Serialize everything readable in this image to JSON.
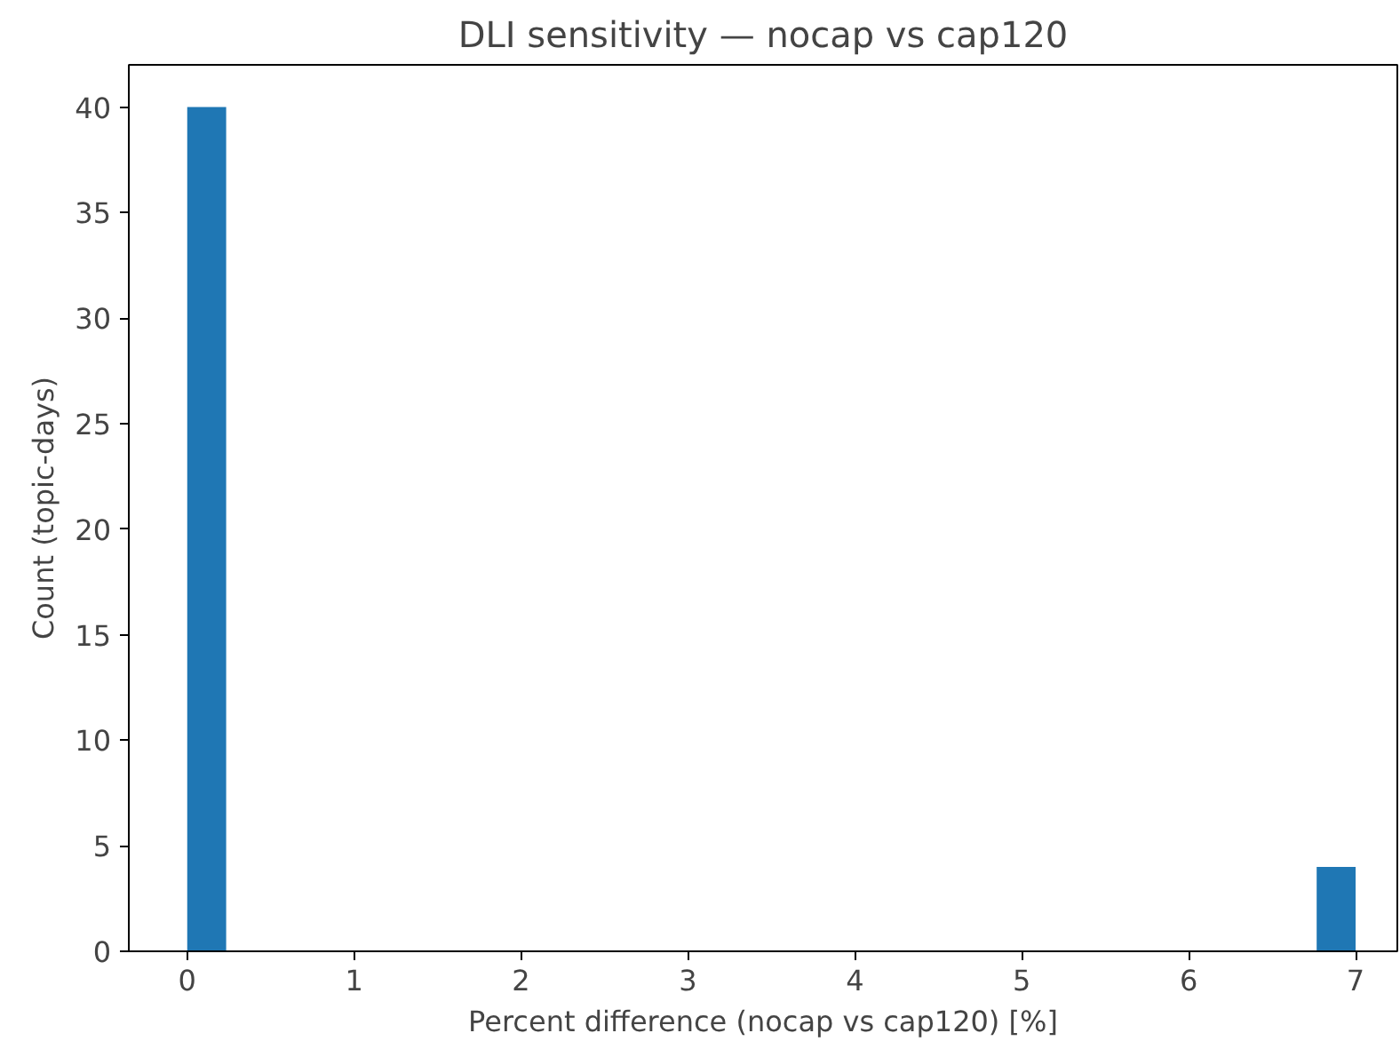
{
  "chart_data": {
    "type": "histogram",
    "title": "DLI sensitivity — nocap vs cap120",
    "xlabel": "Percent difference (nocap vs cap120) [%]",
    "ylabel": "Count (topic-days)",
    "color": "#1f77b4",
    "bins": [
      0,
      0.2333,
      0.4667,
      0.7,
      0.9333,
      1.1667,
      1.4,
      1.6333,
      1.8667,
      2.1,
      2.3333,
      2.5667,
      2.8,
      3.0333,
      3.2667,
      3.5,
      3.7333,
      3.9667,
      4.2,
      4.4333,
      4.6667,
      4.9,
      5.1333,
      5.3667,
      5.6,
      5.8333,
      6.0667,
      6.3,
      6.5333,
      6.7667,
      7.0
    ],
    "values": [
      40,
      0,
      0,
      0,
      0,
      0,
      0,
      0,
      0,
      0,
      0,
      0,
      0,
      0,
      0,
      0,
      0,
      0,
      0,
      0,
      0,
      0,
      0,
      0,
      0,
      0,
      0,
      0,
      0,
      4
    ],
    "xlim": [
      -0.35,
      7.25
    ],
    "ylim": [
      0,
      42
    ],
    "xticks": [
      0,
      1,
      2,
      3,
      4,
      5,
      6,
      7
    ],
    "yticks": [
      0,
      5,
      10,
      15,
      20,
      25,
      30,
      35,
      40
    ],
    "grid": false
  }
}
